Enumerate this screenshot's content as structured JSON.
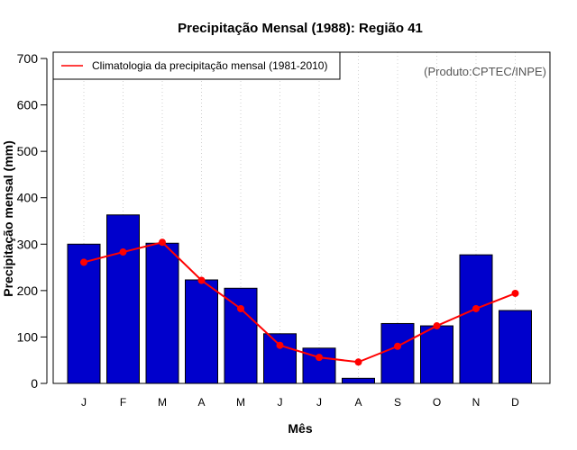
{
  "chart_data": {
    "type": "bar",
    "title": "Precipitação Mensal (1988): Região 41",
    "xlabel": "Mês",
    "ylabel": "Precipitação mensal (mm)",
    "categories": [
      "J",
      "F",
      "M",
      "A",
      "M",
      "J",
      "J",
      "A",
      "S",
      "O",
      "N",
      "D"
    ],
    "ylim": [
      0,
      700
    ],
    "yticks": [
      0,
      100,
      200,
      300,
      400,
      500,
      600,
      700
    ],
    "series": [
      {
        "name": "Precipitação mensal (1988)",
        "kind": "bar",
        "color": "#0000cc",
        "values": [
          300,
          363,
          302,
          223,
          205,
          107,
          76,
          11,
          129,
          124,
          277,
          157
        ]
      },
      {
        "name": "Climatologia da precipitação mensal (1981-2010)",
        "kind": "line",
        "color": "#ff0000",
        "values": [
          261,
          283,
          304,
          222,
          161,
          82,
          56,
          46,
          80,
          124,
          161,
          194
        ]
      }
    ],
    "legend": {
      "position": "top-left",
      "label": "Climatologia da precipitação mensal (1981-2010)"
    },
    "annotation": "(Produto:CPTEC/INPE)",
    "grid": "vertical-dotted"
  }
}
